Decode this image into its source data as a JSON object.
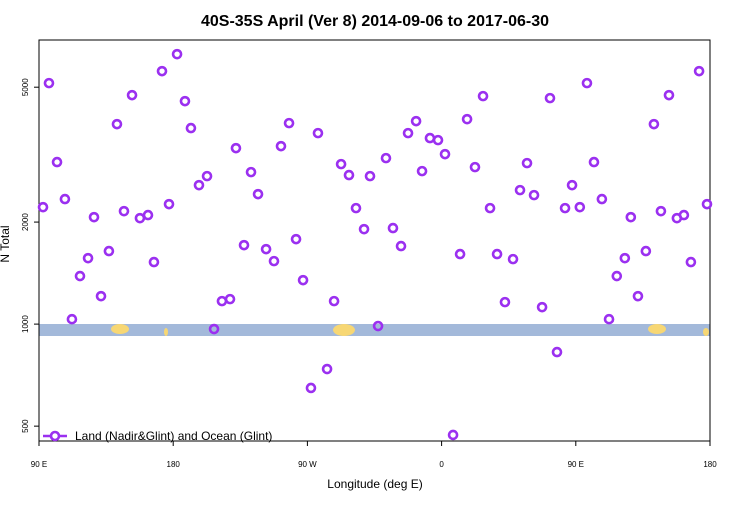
{
  "chart_data": {
    "type": "scatter",
    "title": "40S-35S April (Ver 8)   2014-09-06 to 2017-06-30",
    "xlabel": "Longitude (deg E)",
    "ylabel": "N Total",
    "log_y": true,
    "legend_position": "bottom-left",
    "xlim": [
      90,
      540
    ],
    "ylim": [
      452,
      6890
    ],
    "xticks": [
      {
        "value": 90,
        "label": "90 E"
      },
      180,
      {
        "value": 270,
        "label": "90 W"
      },
      {
        "value": 360,
        "label": "0"
      },
      {
        "value": 450,
        "label": "90 E"
      },
      {
        "value": 540,
        "label": "180"
      }
    ],
    "yticks": [
      500,
      1000,
      2000,
      5000
    ],
    "series": [
      {
        "name": "Land (Nadir&Glint) and Ocean (Glint)",
        "color": "#9b30f0",
        "x": [
          92.7,
          96.7,
          102.1,
          107.4,
          112.1,
          117.5,
          122.9,
          126.9,
          131.6,
          136.9,
          142.3,
          147.0,
          152.4,
          157.7,
          163.1,
          167.1,
          172.5,
          177.2,
          182.6,
          187.9,
          191.9,
          197.3,
          202.7,
          207.4,
          212.7,
          218.1,
          222.1,
          227.5,
          232.2,
          236.9,
          242.3,
          247.6,
          252.3,
          257.7,
          262.4,
          267.1,
          272.4,
          277.1,
          283.2,
          287.9,
          292.6,
          297.9,
          302.6,
          308.0,
          312.0,
          317.4,
          322.7,
          327.4,
          332.8,
          337.5,
          342.9,
          346.9,
          352.2,
          357.6,
          362.3,
          367.7,
          372.4,
          377.1,
          382.4,
          387.8,
          392.5,
          397.2,
          402.5,
          407.9,
          412.6,
          417.3,
          422.0,
          427.4,
          432.7,
          437.4,
          442.8,
          447.5,
          452.7,
          457.5,
          462.2,
          467.5,
          472.3,
          477.5,
          482.9,
          486.9,
          491.7,
          497.0,
          502.4,
          507.1,
          512.5,
          517.8,
          522.5,
          527.2,
          532.7,
          538.0
        ],
        "values": [
          2213,
          5140,
          3006,
          2338,
          1034,
          1386,
          1565,
          2068,
          1209,
          1642,
          3890,
          2154,
          4737,
          2054,
          2097,
          1524,
          5576,
          2259,
          6258,
          4548,
          3787,
          2570,
          2733,
          967,
          1169,
          1185,
          3305,
          1710,
          2808,
          2418,
          1664,
          1534,
          3350,
          3917,
          1781,
          1348,
          648,
          3660,
          737,
          1169,
          2965,
          2752,
          2199,
          1906,
          2733,
          987,
          3088,
          1920,
          1699,
          3660,
          3970,
          2827,
          3538,
          3490,
          3173,
          471,
          1609,
          4024,
          2905,
          4706,
          2199,
          1609,
          1161,
          1555,
          2485,
          2985,
          2402,
          1122,
          4642,
          827,
          2199,
          2570,
          2213,
          5140,
          3006,
          2338,
          1034,
          1386,
          1565,
          2068,
          1209,
          1642,
          3890,
          2154,
          4737,
          2054,
          2097,
          1524,
          5576,
          2259
        ]
      }
    ]
  }
}
